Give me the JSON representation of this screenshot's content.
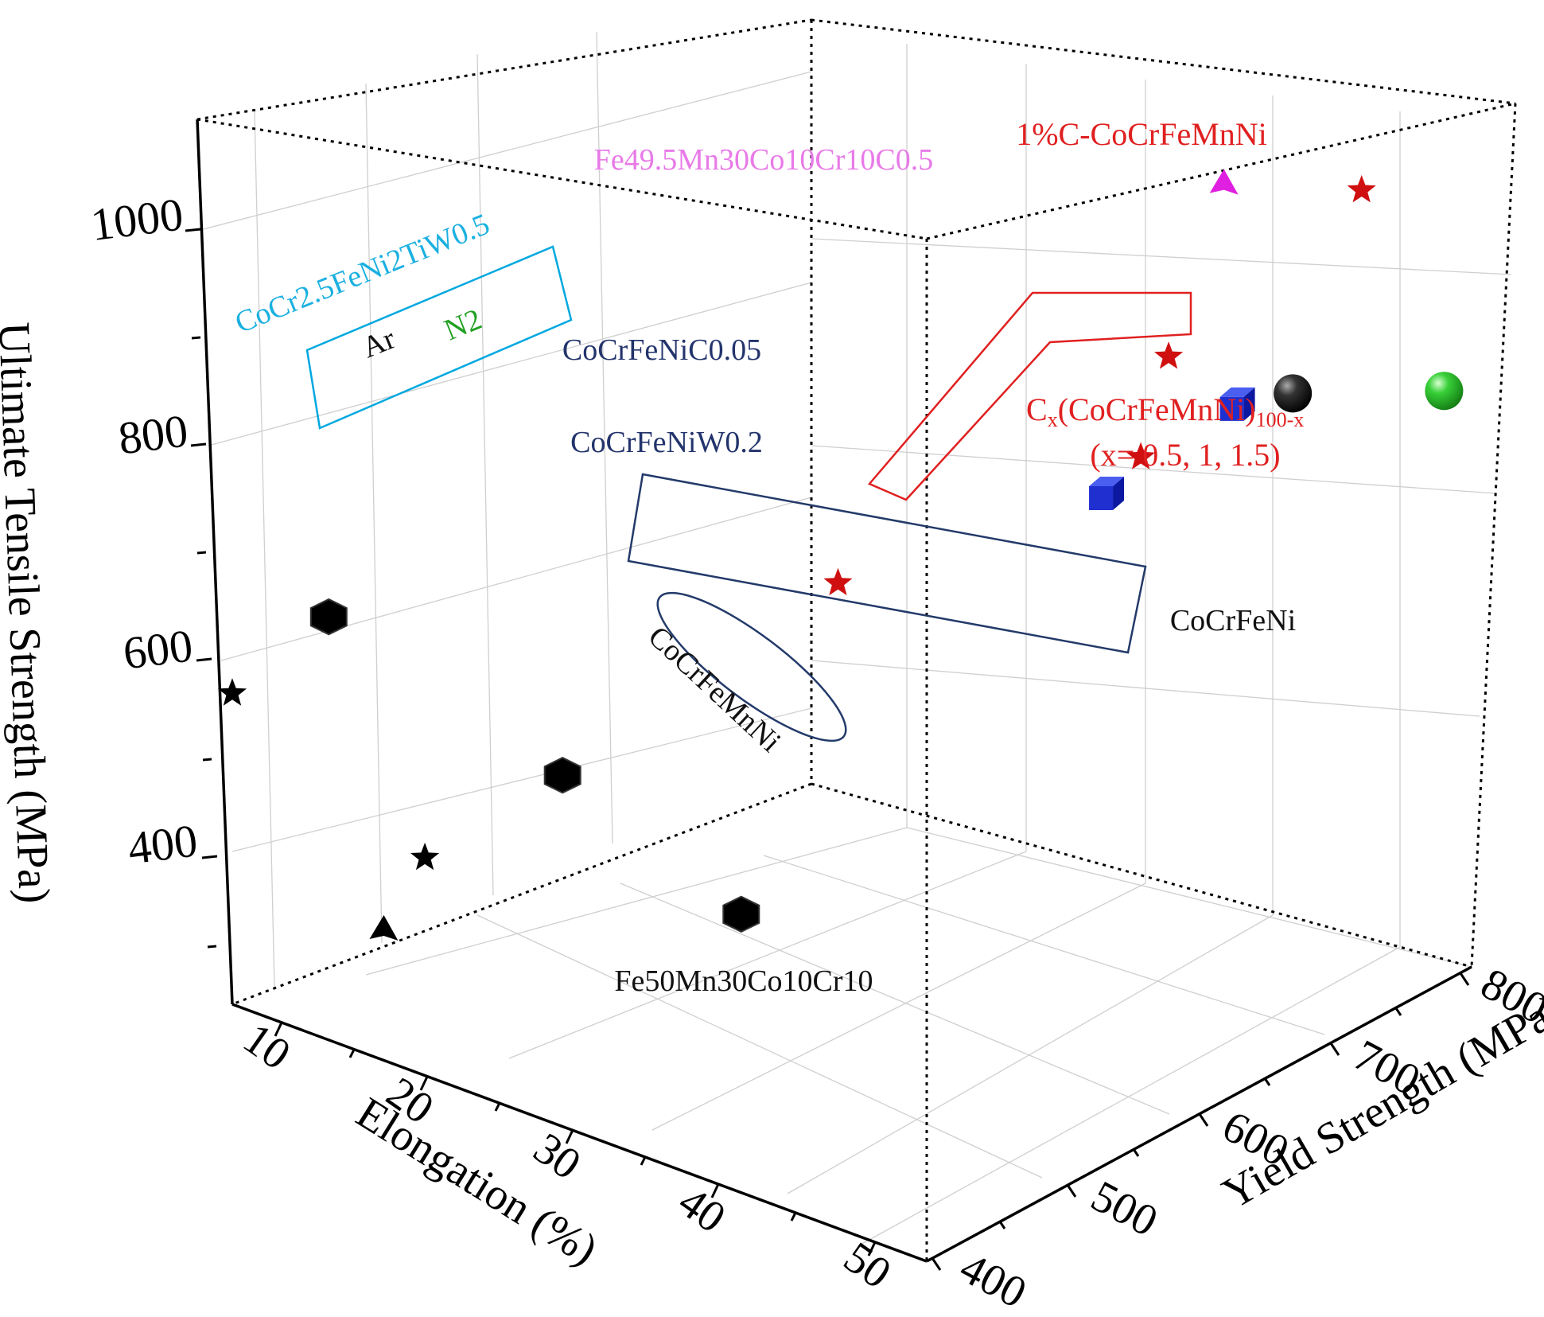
{
  "chart_data": {
    "type": "scatter",
    "axes": {
      "z": {
        "label": "Ultimate Tensile Strength (MPa)",
        "range": [
          250,
          1110
        ],
        "ticks": [
          "400",
          "600",
          "800",
          "1000"
        ]
      },
      "x": {
        "label": "Elongation (%)",
        "range": [
          8,
          50
        ],
        "ticks": [
          "10",
          "20",
          "30",
          "40",
          "50"
        ]
      },
      "y": {
        "label": "Yield Strength (MPa)",
        "range": [
          400,
          880
        ],
        "ticks": [
          "400",
          "500",
          "600",
          "700",
          "800"
        ]
      }
    },
    "grid": true,
    "series": [
      {
        "name": "Ar",
        "marker": "sphere",
        "color": "#111111",
        "points": [
          {
            "x": 9,
            "y": 760,
            "z": 850
          }
        ]
      },
      {
        "name": "N2",
        "marker": "sphere",
        "color": "#22bb22",
        "points": [
          {
            "x": 9,
            "y": 870,
            "z": 900
          }
        ]
      },
      {
        "name": "CoCrFeNiC0.05",
        "marker": "cube",
        "color": "#1f2fd0",
        "points": [
          {
            "x": 19,
            "y": 820,
            "z": 920
          }
        ]
      },
      {
        "name": "CoCrFeNiW0.2",
        "marker": "cube",
        "color": "#1f2fd0",
        "points": [
          {
            "x": 25,
            "y": 785,
            "z": 840
          }
        ]
      },
      {
        "name": "CoCrFeNi",
        "marker": "hexagon",
        "color": "#000000",
        "points": [
          {
            "x": 44,
            "y": 410,
            "z": 655
          },
          {
            "x": 46,
            "y": 600,
            "z": 570
          },
          {
            "x": 49,
            "y": 760,
            "z": 500
          }
        ]
      },
      {
        "name": "CoCrFeMnNi",
        "marker": "star",
        "color": "#000000",
        "points": [
          {
            "x": 50,
            "y": 400,
            "z": 600
          },
          {
            "x": 50,
            "y": 540,
            "z": 475
          }
        ]
      },
      {
        "name": "Cx(CoCrFeMnNi)100-x",
        "marker": "star",
        "color": "#d01010",
        "points": [
          {
            "x": 35,
            "y": 690,
            "z": 760
          },
          {
            "x": 20,
            "y": 780,
            "z": 965
          },
          {
            "x": 29,
            "y": 850,
            "z": 935
          }
        ]
      },
      {
        "name": "1%C-CoCrFeMnNi",
        "marker": "star",
        "color": "#d01010",
        "points": [
          {
            "x": 8,
            "y": 800,
            "z": 1090
          }
        ]
      },
      {
        "name": "Fe49.5Mn30Co10Cr10C0.5",
        "marker": "pyramid",
        "color": "#e020e0",
        "points": [
          {
            "x": 10,
            "y": 720,
            "z": 1075
          }
        ]
      },
      {
        "name": "Fe50Mn30Co10Cr10",
        "marker": "pyramid",
        "color": "#000000",
        "points": [
          {
            "x": 43,
            "y": 440,
            "z": 310
          }
        ]
      }
    ],
    "annotations": {
      "group_cocr": "CoCr2.5FeNi2TiW0.5",
      "ar": "Ar",
      "n2": "N2",
      "c005": "CoCrFeNiC0.05",
      "w02": "CoCrFeNiW0.2",
      "cocrfeni": "CoCrFeNi",
      "cocrfemnni": "CoCrFeMnNi",
      "cx_main": "C",
      "cx_sub1": "x",
      "cx_mid": "(CoCrFeMnNi)",
      "cx_sub2": "100-x",
      "cx_line2": "(x= 0.5, 1, 1.5)",
      "onepct": "1%C-CoCrFeMnNi",
      "fe495": "Fe49.5Mn30Co10Cr10C0.5",
      "fe50": "Fe50Mn30Co10Cr10"
    }
  }
}
